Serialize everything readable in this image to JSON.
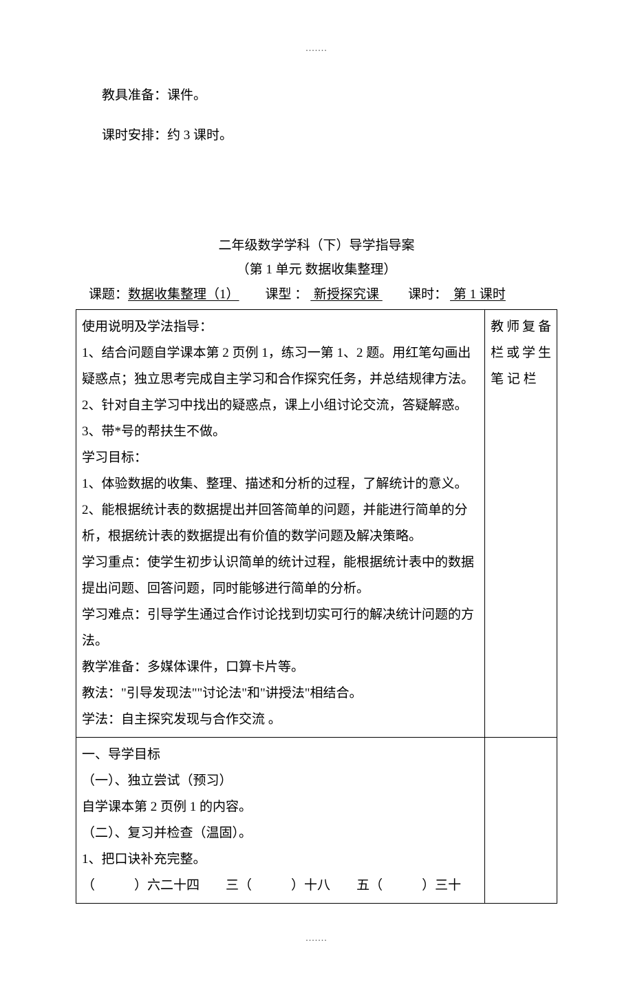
{
  "dots": ".......",
  "intro": {
    "line1": "教具准备：课件。",
    "line2": "课时安排：约 3 课时。"
  },
  "header": {
    "title": "二年级数学学科（下）导学指导案",
    "subtitle": "（第 1 单元  数据收集整理）"
  },
  "topic": {
    "label_topic": "课题：",
    "topic_text": "数据收集整理（1）",
    "label_type": "课型 ：",
    "type_text": " 新授探究课 ",
    "label_period": "课时：",
    "period_text": "  第 1 课时   "
  },
  "side_note": "教师复备栏或学生笔 记 栏",
  "block1": {
    "h_usage": "使用说明及学法指导：",
    "u1": "1、结合问题自学课本第 2 页例 1，练习一第 1、2 题。用红笔勾画出疑惑点；独立思考完成自主学习和合作探究任务，并总结规律方法。",
    "u2": "2、针对自主学习中找出的疑惑点，课上小组讨论交流，答疑解惑。",
    "u3": "3、带*号的帮扶生不做。",
    "h_goal": "学习目标：",
    "g1": "1、体验数据的收集、整理、描述和分析的过程，了解统计的意义。",
    "g2": "2、能根据统计表的数据提出并回答简单的问题，并能进行简单的分析，根据统计表的数据提出有价值的数学问题及解决策略。",
    "h_key": "学习重点：使学生初步认识简单的统计过程，能根据统计表中的数据提出问题、回答问题，同时能够进行简单的分析。",
    "h_diff": "学习难点：引导学生通过合作讨论找到切实可行的解决统计问题的方法。",
    "h_prep": "教学准备：多媒体课件，口算卡片等。",
    "h_teach": "教法：\"引导发现法\"\"讨论法\"和\"讲授法\"相结合。",
    "h_learn": "学法：自主探究发现与合作交流 。"
  },
  "block2": {
    "l1": "一、导学目标",
    "l2": "（一）、独立尝试（预习）",
    "l3": "自学课本第 2 页例 1 的内容。",
    "l4": "（二）、复习并检查（温固）。",
    "l5": "1、把口诀补充完整。",
    "fill": {
      "p1a": "（",
      "p1b": "）六二十四",
      "p2a": "三（",
      "p2b": "）十八",
      "p3a": "五（",
      "p3b": "）三十"
    }
  }
}
